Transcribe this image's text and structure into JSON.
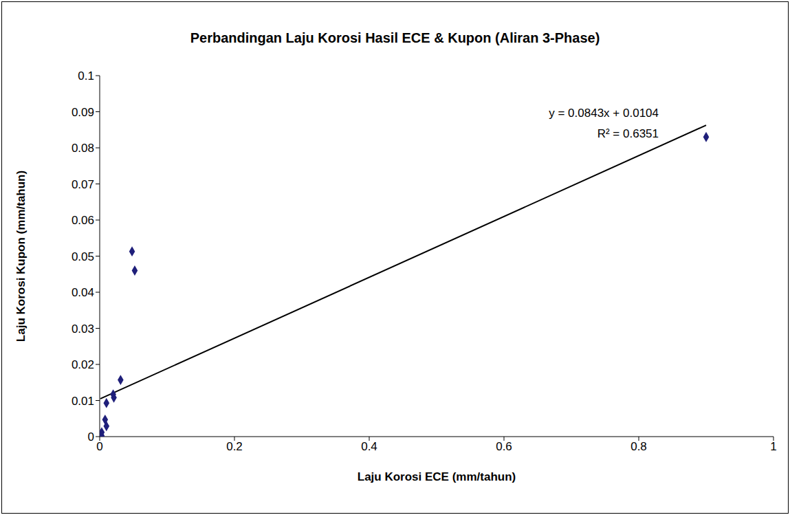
{
  "chart_data": {
    "type": "scatter",
    "title": "Perbandingan Laju Korosi Hasil ECE & Kupon (Aliran 3-Phase)",
    "x_label": "Laju Korosi ECE (mm/tahun)",
    "y_label": "Laju Korosi Kupon (mm/tahun)",
    "x": [
      0.9,
      0.048,
      0.052,
      0.031,
      0.02,
      0.021,
      0.01,
      0.008,
      0.01,
      0.003,
      0.002,
      0.003,
      0.001
    ],
    "values": [
      0.083,
      0.0513,
      0.046,
      0.0157,
      0.0117,
      0.0108,
      0.0093,
      0.0047,
      0.0029,
      0.0012,
      0.0005,
      0.0002,
      0.0
    ],
    "color": "#1f1f7a",
    "marker": "diamond",
    "xlim": [
      0,
      1
    ],
    "xticks": [
      0,
      0.2,
      0.4,
      0.6,
      0.8,
      1
    ],
    "ylim": [
      0,
      0.1
    ],
    "yticks": [
      0,
      0.01,
      0.02,
      0.03,
      0.04,
      0.05,
      0.06,
      0.07,
      0.08,
      0.09,
      0.1
    ],
    "grid": false,
    "trendline": {
      "slope": 0.0843,
      "intercept": 0.0104,
      "color": "#000000",
      "equation": "y = 0.0843x + 0.0104",
      "r2_label": "R² = 0.6351"
    }
  }
}
